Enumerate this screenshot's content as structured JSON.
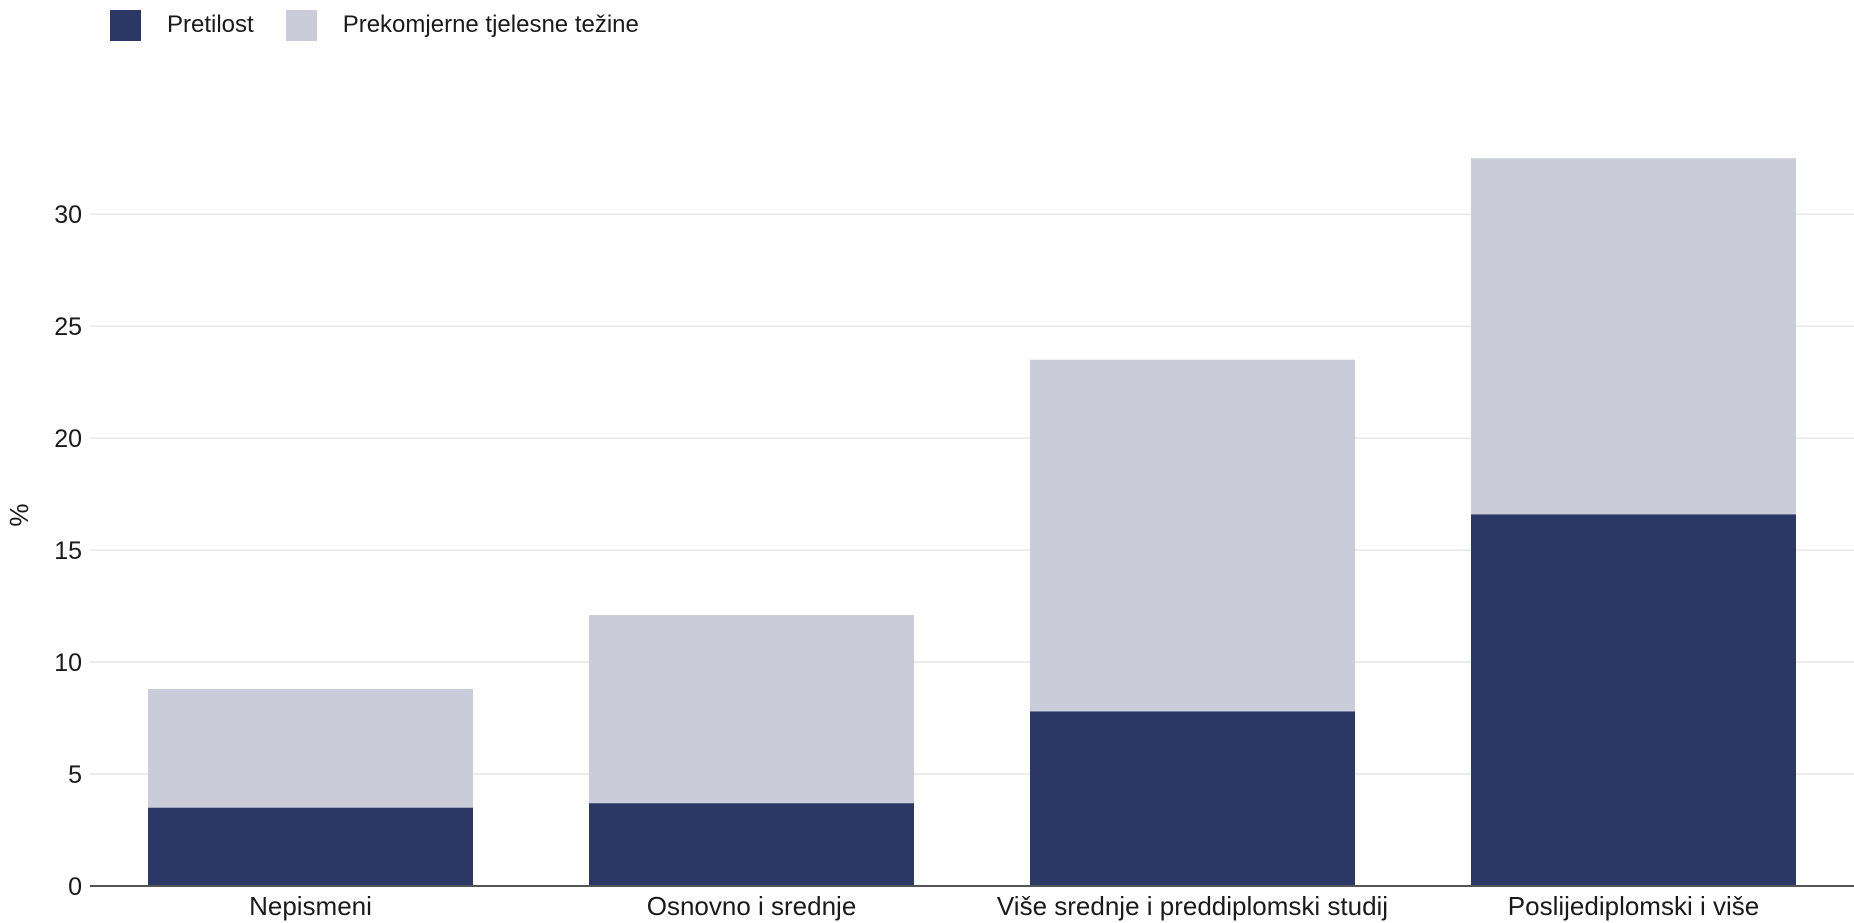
{
  "chart_data": {
    "type": "bar",
    "stacked": true,
    "title": "",
    "xlabel": "",
    "ylabel": "%",
    "ylim": [
      0,
      33
    ],
    "yticks": [
      0,
      5,
      10,
      15,
      20,
      25,
      30
    ],
    "grid": true,
    "legend_position": "top-left",
    "categories": [
      "Nepismeni",
      "Osnovno i srednje",
      "Više srednje i preddiplomski studij",
      "Poslijediplomski i više"
    ],
    "series": [
      {
        "name": "Pretilost",
        "color": "#2b3764",
        "values": [
          3.5,
          3.7,
          7.8,
          16.6
        ]
      },
      {
        "name": "Prekomjerne tjelesne težine",
        "color": "#cacdd9",
        "values": [
          5.3,
          8.4,
          15.7,
          15.9
        ]
      }
    ]
  }
}
